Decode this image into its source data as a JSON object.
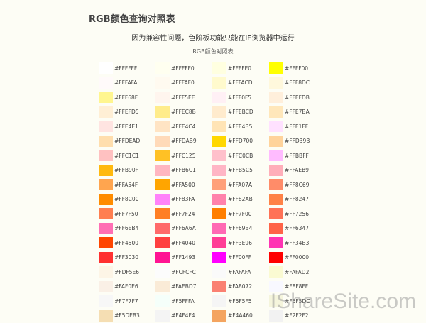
{
  "page_title": "RGB颜色查询对照表",
  "notice": "因为兼容性问题，色阶板功能只能在IE浏览器中运行",
  "table_caption": "RGB颜色对照表",
  "watermark": "IShareSite.com",
  "colors": [
    "#FFFFFF",
    "#FFFFF0",
    "#FFFFE0",
    "#FFFF00",
    "#FFFAFA",
    "#FFFAF0",
    "#FFFACD",
    "#FFF8DC",
    "#FFF68F",
    "#FFF5EE",
    "#FFF0F5",
    "#FFEFDB",
    "#FFEFD5",
    "#FFEC8B",
    "#FFEBCD",
    "#FFE7BA",
    "#FFE4E1",
    "#FFE4C4",
    "#FFE4B5",
    "#FFE1FF",
    "#FFDEAD",
    "#FFDAB9",
    "#FFD700",
    "#FFD39B",
    "#FFC1C1",
    "#FFC125",
    "#FFC0CB",
    "#FFBBFF",
    "#FFB90F",
    "#FFB6C1",
    "#FFB5C5",
    "#FFAEB9",
    "#FFA54F",
    "#FFA500",
    "#FFA07A",
    "#FF8C69",
    "#FF8C00",
    "#FF83FA",
    "#FF82AB",
    "#FF8247",
    "#FF7F50",
    "#FF7F24",
    "#FF7F00",
    "#FF7256",
    "#FF6EB4",
    "#FF6A6A",
    "#FF69B4",
    "#FF6347",
    "#FF4500",
    "#FF4040",
    "#FF3E96",
    "#FF34B3",
    "#FF3030",
    "#FF1493",
    "#FF00FF",
    "#FF0000",
    "#FDF5E6",
    "#FCFCFC",
    "#FAFAFA",
    "#FAFAD2",
    "#FAF0E6",
    "#FAEBD7",
    "#FA8072",
    "#F8F8FF",
    "#F7F7F7",
    "#F5FFFA",
    "#F5F5F5",
    "#F5F5DC",
    "#F5DEB3",
    "#F4F4F4",
    "#F4A460",
    "#F2F2F2"
  ]
}
